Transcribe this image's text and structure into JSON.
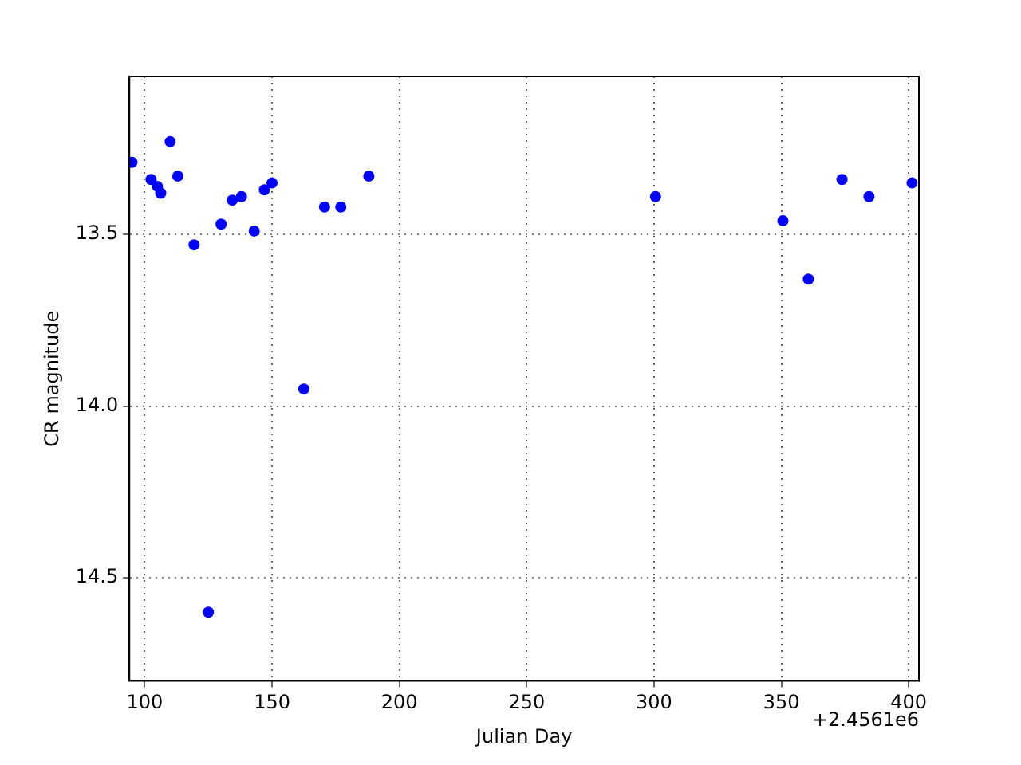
{
  "chart_data": {
    "type": "scatter",
    "xlabel": "Julian Day",
    "ylabel": "CR magnitude",
    "annotations": [
      "+2.4561e6"
    ],
    "x": [
      95,
      102.5,
      105,
      106.3,
      110,
      113,
      119.4,
      125,
      130,
      134.4,
      138,
      143,
      147,
      150,
      162.5,
      170.6,
      177,
      188,
      300.6,
      350.6,
      360.6,
      373.8,
      384.4,
      401.3
    ],
    "series": [
      {
        "color": "#0000ff",
        "values": [
          13.29,
          13.34,
          13.36,
          13.38,
          13.23,
          13.33,
          13.53,
          14.6,
          13.47,
          13.4,
          13.39,
          13.49,
          13.37,
          13.35,
          13.95,
          13.42,
          13.42,
          13.33,
          13.39,
          13.46,
          13.63,
          13.34,
          13.39,
          13.35
        ]
      }
    ],
    "xlim": [
      94,
      404
    ],
    "xticks": [
      100,
      150,
      200,
      250,
      300,
      350,
      400
    ],
    "ylim": [
      14.8,
      13.04
    ],
    "yticks": [
      {
        "value": 13.5,
        "label": "13.5"
      },
      {
        "value": 14,
        "label": "14.0"
      },
      {
        "value": 14.5,
        "label": "14.5"
      }
    ],
    "grid": true,
    "marker": "circle",
    "legend": false
  }
}
